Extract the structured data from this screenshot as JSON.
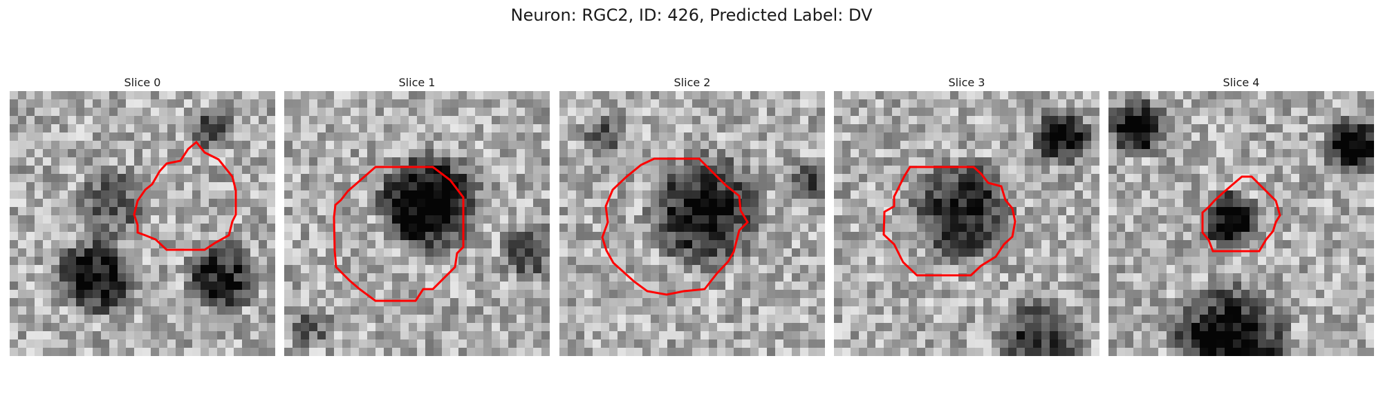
{
  "figure": {
    "title": "Neuron: RGC2, ID: 426, Predicted Label: DV"
  },
  "panels": [
    {
      "title": "Slice 0"
    },
    {
      "title": "Slice 1"
    },
    {
      "title": "Slice 2"
    },
    {
      "title": "Slice 3"
    },
    {
      "title": "Slice 4"
    }
  ],
  "outline_color": "#ff0000"
}
